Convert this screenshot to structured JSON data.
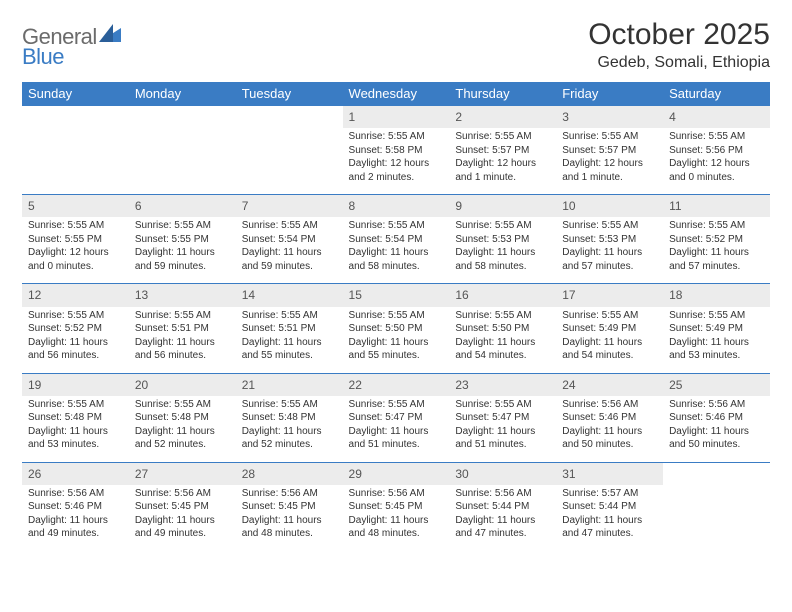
{
  "brand": {
    "text_general": "General",
    "text_blue": "Blue",
    "mark_color": "#3a7cc4"
  },
  "header": {
    "title": "October 2025",
    "location": "Gedeb, Somali, Ethiopia"
  },
  "colors": {
    "header_bar": "#3a7cc4",
    "header_text": "#ffffff",
    "daynum_bg": "#ececec",
    "rule": "#3a7cc4",
    "body_text": "#333333",
    "background": "#ffffff"
  },
  "typography": {
    "title_fontsize_pt": 22,
    "location_fontsize_pt": 12,
    "header_fontsize_pt": 10,
    "body_fontsize_pt": 7.5
  },
  "weekdays": [
    "Sunday",
    "Monday",
    "Tuesday",
    "Wednesday",
    "Thursday",
    "Friday",
    "Saturday"
  ],
  "calendar": {
    "type": "table",
    "columns": 7,
    "weeks": [
      {
        "days": [
          null,
          null,
          null,
          {
            "n": "1",
            "sunrise": "Sunrise: 5:55 AM",
            "sunset": "Sunset: 5:58 PM",
            "daylight": "Daylight: 12 hours and 2 minutes."
          },
          {
            "n": "2",
            "sunrise": "Sunrise: 5:55 AM",
            "sunset": "Sunset: 5:57 PM",
            "daylight": "Daylight: 12 hours and 1 minute."
          },
          {
            "n": "3",
            "sunrise": "Sunrise: 5:55 AM",
            "sunset": "Sunset: 5:57 PM",
            "daylight": "Daylight: 12 hours and 1 minute."
          },
          {
            "n": "4",
            "sunrise": "Sunrise: 5:55 AM",
            "sunset": "Sunset: 5:56 PM",
            "daylight": "Daylight: 12 hours and 0 minutes."
          }
        ]
      },
      {
        "days": [
          {
            "n": "5",
            "sunrise": "Sunrise: 5:55 AM",
            "sunset": "Sunset: 5:55 PM",
            "daylight": "Daylight: 12 hours and 0 minutes."
          },
          {
            "n": "6",
            "sunrise": "Sunrise: 5:55 AM",
            "sunset": "Sunset: 5:55 PM",
            "daylight": "Daylight: 11 hours and 59 minutes."
          },
          {
            "n": "7",
            "sunrise": "Sunrise: 5:55 AM",
            "sunset": "Sunset: 5:54 PM",
            "daylight": "Daylight: 11 hours and 59 minutes."
          },
          {
            "n": "8",
            "sunrise": "Sunrise: 5:55 AM",
            "sunset": "Sunset: 5:54 PM",
            "daylight": "Daylight: 11 hours and 58 minutes."
          },
          {
            "n": "9",
            "sunrise": "Sunrise: 5:55 AM",
            "sunset": "Sunset: 5:53 PM",
            "daylight": "Daylight: 11 hours and 58 minutes."
          },
          {
            "n": "10",
            "sunrise": "Sunrise: 5:55 AM",
            "sunset": "Sunset: 5:53 PM",
            "daylight": "Daylight: 11 hours and 57 minutes."
          },
          {
            "n": "11",
            "sunrise": "Sunrise: 5:55 AM",
            "sunset": "Sunset: 5:52 PM",
            "daylight": "Daylight: 11 hours and 57 minutes."
          }
        ]
      },
      {
        "days": [
          {
            "n": "12",
            "sunrise": "Sunrise: 5:55 AM",
            "sunset": "Sunset: 5:52 PM",
            "daylight": "Daylight: 11 hours and 56 minutes."
          },
          {
            "n": "13",
            "sunrise": "Sunrise: 5:55 AM",
            "sunset": "Sunset: 5:51 PM",
            "daylight": "Daylight: 11 hours and 56 minutes."
          },
          {
            "n": "14",
            "sunrise": "Sunrise: 5:55 AM",
            "sunset": "Sunset: 5:51 PM",
            "daylight": "Daylight: 11 hours and 55 minutes."
          },
          {
            "n": "15",
            "sunrise": "Sunrise: 5:55 AM",
            "sunset": "Sunset: 5:50 PM",
            "daylight": "Daylight: 11 hours and 55 minutes."
          },
          {
            "n": "16",
            "sunrise": "Sunrise: 5:55 AM",
            "sunset": "Sunset: 5:50 PM",
            "daylight": "Daylight: 11 hours and 54 minutes."
          },
          {
            "n": "17",
            "sunrise": "Sunrise: 5:55 AM",
            "sunset": "Sunset: 5:49 PM",
            "daylight": "Daylight: 11 hours and 54 minutes."
          },
          {
            "n": "18",
            "sunrise": "Sunrise: 5:55 AM",
            "sunset": "Sunset: 5:49 PM",
            "daylight": "Daylight: 11 hours and 53 minutes."
          }
        ]
      },
      {
        "days": [
          {
            "n": "19",
            "sunrise": "Sunrise: 5:55 AM",
            "sunset": "Sunset: 5:48 PM",
            "daylight": "Daylight: 11 hours and 53 minutes."
          },
          {
            "n": "20",
            "sunrise": "Sunrise: 5:55 AM",
            "sunset": "Sunset: 5:48 PM",
            "daylight": "Daylight: 11 hours and 52 minutes."
          },
          {
            "n": "21",
            "sunrise": "Sunrise: 5:55 AM",
            "sunset": "Sunset: 5:48 PM",
            "daylight": "Daylight: 11 hours and 52 minutes."
          },
          {
            "n": "22",
            "sunrise": "Sunrise: 5:55 AM",
            "sunset": "Sunset: 5:47 PM",
            "daylight": "Daylight: 11 hours and 51 minutes."
          },
          {
            "n": "23",
            "sunrise": "Sunrise: 5:55 AM",
            "sunset": "Sunset: 5:47 PM",
            "daylight": "Daylight: 11 hours and 51 minutes."
          },
          {
            "n": "24",
            "sunrise": "Sunrise: 5:56 AM",
            "sunset": "Sunset: 5:46 PM",
            "daylight": "Daylight: 11 hours and 50 minutes."
          },
          {
            "n": "25",
            "sunrise": "Sunrise: 5:56 AM",
            "sunset": "Sunset: 5:46 PM",
            "daylight": "Daylight: 11 hours and 50 minutes."
          }
        ]
      },
      {
        "days": [
          {
            "n": "26",
            "sunrise": "Sunrise: 5:56 AM",
            "sunset": "Sunset: 5:46 PM",
            "daylight": "Daylight: 11 hours and 49 minutes."
          },
          {
            "n": "27",
            "sunrise": "Sunrise: 5:56 AM",
            "sunset": "Sunset: 5:45 PM",
            "daylight": "Daylight: 11 hours and 49 minutes."
          },
          {
            "n": "28",
            "sunrise": "Sunrise: 5:56 AM",
            "sunset": "Sunset: 5:45 PM",
            "daylight": "Daylight: 11 hours and 48 minutes."
          },
          {
            "n": "29",
            "sunrise": "Sunrise: 5:56 AM",
            "sunset": "Sunset: 5:45 PM",
            "daylight": "Daylight: 11 hours and 48 minutes."
          },
          {
            "n": "30",
            "sunrise": "Sunrise: 5:56 AM",
            "sunset": "Sunset: 5:44 PM",
            "daylight": "Daylight: 11 hours and 47 minutes."
          },
          {
            "n": "31",
            "sunrise": "Sunrise: 5:57 AM",
            "sunset": "Sunset: 5:44 PM",
            "daylight": "Daylight: 11 hours and 47 minutes."
          },
          null
        ]
      }
    ]
  }
}
